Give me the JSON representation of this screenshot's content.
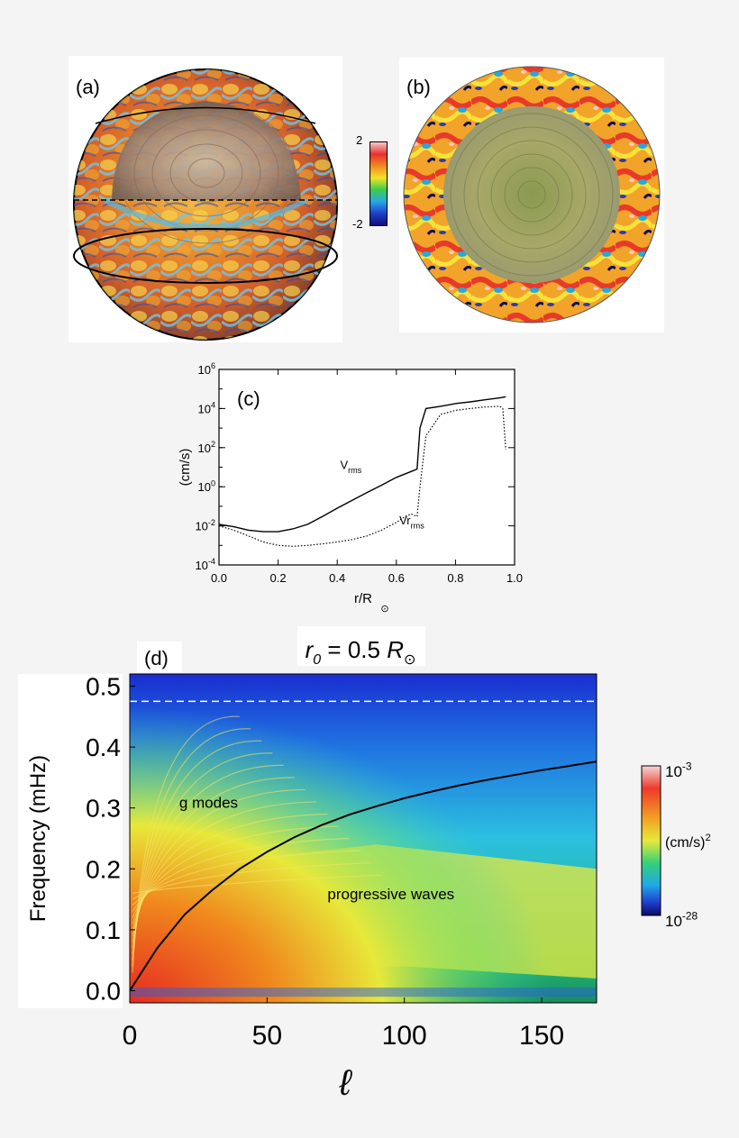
{
  "panel_a": {
    "label": "(a)",
    "colorbar": {
      "max_label": "2",
      "min_label": "-2"
    }
  },
  "panel_b": {
    "label": "(b)"
  },
  "chart_data": [
    {
      "type": "line",
      "panel": "(c)",
      "xlabel": "r/R",
      "xlabel_sub": "⊙",
      "ylabel": "(cm/s)",
      "ylog": true,
      "xlim": [
        0.0,
        1.0
      ],
      "ylim": [
        0.0001,
        1000000
      ],
      "x_ticks": [
        "0.0",
        "0.2",
        "0.4",
        "0.6",
        "0.8",
        "1.0"
      ],
      "y_ticks": [
        {
          "base": "10",
          "exp": "6"
        },
        {
          "base": "10",
          "exp": "4"
        },
        {
          "base": "10",
          "exp": "2"
        },
        {
          "base": "10",
          "exp": "0"
        },
        {
          "base": "10",
          "exp": "-2"
        },
        {
          "base": "10",
          "exp": "-4"
        }
      ],
      "series": [
        {
          "name": "V_rms",
          "label_main": "V",
          "label_sub": "rms",
          "style": "solid",
          "x": [
            0.0,
            0.05,
            0.1,
            0.15,
            0.2,
            0.25,
            0.3,
            0.35,
            0.4,
            0.45,
            0.5,
            0.55,
            0.6,
            0.65,
            0.67,
            0.68,
            0.7,
            0.75,
            0.8,
            0.85,
            0.9,
            0.95,
            0.97
          ],
          "y": [
            0.012,
            0.009,
            0.006,
            0.005,
            0.005,
            0.007,
            0.012,
            0.03,
            0.08,
            0.2,
            0.5,
            1.2,
            3,
            6,
            8,
            1000,
            10000,
            13000,
            18000,
            22000,
            28000,
            35000,
            40000
          ]
        },
        {
          "name": "Vr_rms",
          "label_main": "Vr",
          "label_sub": "rms",
          "style": "dotted",
          "x": [
            0.0,
            0.05,
            0.1,
            0.15,
            0.2,
            0.25,
            0.3,
            0.35,
            0.4,
            0.45,
            0.5,
            0.55,
            0.6,
            0.63,
            0.65,
            0.67,
            0.68,
            0.7,
            0.75,
            0.8,
            0.85,
            0.9,
            0.95,
            0.96,
            0.97
          ],
          "y": [
            0.01,
            0.006,
            0.003,
            0.0015,
            0.001,
            0.0009,
            0.001,
            0.0012,
            0.0015,
            0.002,
            0.003,
            0.006,
            0.015,
            0.03,
            0.04,
            0.03,
            1,
            400,
            5000,
            8000,
            10000,
            12000,
            13000,
            10000,
            80
          ]
        }
      ]
    },
    {
      "type": "heatmap",
      "panel": "(d)",
      "title": "r_0 = 0.5 R_⊙",
      "xlabel": "ℓ",
      "ylabel": "Frequency (mHz)",
      "xlim": [
        0,
        170
      ],
      "ylim": [
        -0.02,
        0.52
      ],
      "x_ticks": [
        "0",
        "50",
        "100",
        "150"
      ],
      "y_ticks": [
        "0.5",
        "0.4",
        "0.3",
        "0.2",
        "0.1",
        "0.0"
      ],
      "colorbar": {
        "max_label": "10-3",
        "unit": "(cm/s)2",
        "min_label": "10-28",
        "scale": "log"
      },
      "annotations": [
        "g modes",
        "progressive waves"
      ],
      "dashed_line_frequency": 0.475,
      "curve": {
        "x": [
          0,
          10,
          20,
          30,
          40,
          50,
          60,
          70,
          80,
          90,
          100,
          110,
          120,
          130,
          140,
          150,
          160,
          170
        ],
        "y": [
          0.0,
          0.07,
          0.125,
          0.165,
          0.2,
          0.228,
          0.252,
          0.272,
          0.289,
          0.303,
          0.316,
          0.327,
          0.337,
          0.346,
          0.354,
          0.362,
          0.369,
          0.376
        ]
      }
    }
  ]
}
